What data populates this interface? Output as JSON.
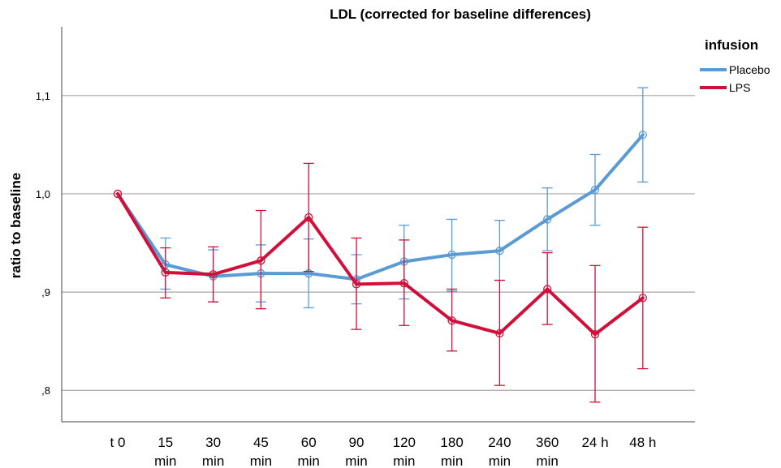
{
  "chart_data": {
    "type": "line",
    "title": "LDL (corrected for baseline differences)",
    "ylabel": "ratio to baseline",
    "xlabel": "",
    "categories": [
      [
        "t 0"
      ],
      [
        "15",
        "min"
      ],
      [
        "30",
        "min"
      ],
      [
        "45",
        "min"
      ],
      [
        "60",
        "min"
      ],
      [
        "90",
        "min"
      ],
      [
        "120",
        "min"
      ],
      [
        "180",
        "min"
      ],
      [
        "240",
        "min"
      ],
      [
        "360",
        "min"
      ],
      [
        "24 h"
      ],
      [
        "48 h"
      ]
    ],
    "yticks": [
      {
        "value": 0.8,
        "label": ",8"
      },
      {
        "value": 0.9,
        "label": ",9"
      },
      {
        "value": 1.0,
        "label": "1,0"
      },
      {
        "value": 1.1,
        "label": "1,1"
      }
    ],
    "ylim": [
      0.768,
      1.17
    ],
    "grid": true,
    "legend": {
      "title": "infusion",
      "placement": "top-right"
    },
    "series": [
      {
        "name": "Placebo",
        "color": "#5b9bd5",
        "values": [
          1.0,
          0.928,
          0.916,
          0.919,
          0.919,
          0.913,
          0.931,
          0.938,
          0.942,
          0.974,
          1.004,
          1.06
        ],
        "lower": [
          1.0,
          0.903,
          0.89,
          0.89,
          0.884,
          0.888,
          0.893,
          0.901,
          0.912,
          0.942,
          0.968,
          1.012
        ],
        "upper": [
          1.0,
          0.955,
          0.943,
          0.948,
          0.954,
          0.938,
          0.968,
          0.974,
          0.973,
          1.006,
          1.04,
          1.108
        ]
      },
      {
        "name": "LPS",
        "color": "#d0103a",
        "values": [
          1.0,
          0.92,
          0.918,
          0.932,
          0.976,
          0.908,
          0.909,
          0.871,
          0.858,
          0.903,
          0.857,
          0.894
        ],
        "lower": [
          1.0,
          0.894,
          0.89,
          0.883,
          0.921,
          0.862,
          0.866,
          0.84,
          0.805,
          0.867,
          0.788,
          0.822
        ],
        "upper": [
          1.0,
          0.945,
          0.946,
          0.983,
          1.031,
          0.955,
          0.953,
          0.903,
          0.912,
          0.94,
          0.927,
          0.966
        ]
      }
    ]
  }
}
